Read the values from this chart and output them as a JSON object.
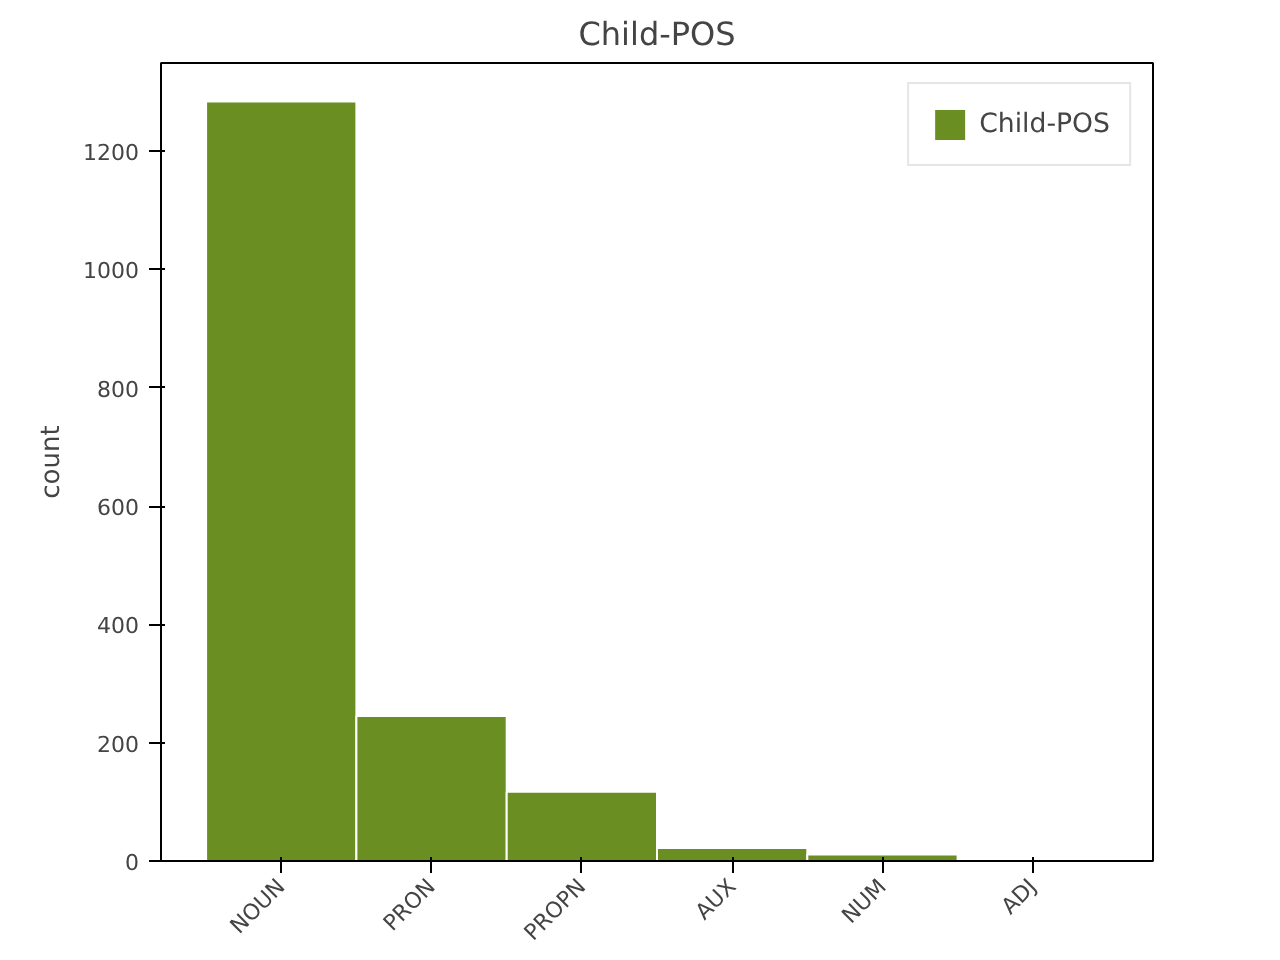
{
  "chart_data": {
    "type": "bar",
    "title": "Child-POS",
    "ylabel": "count",
    "categories": [
      "NOUN",
      "PRON",
      "PROPN",
      "AUX",
      "NUM",
      "ADJ"
    ],
    "series": [
      {
        "name": "Child-POS",
        "color": "#6b8e23",
        "values": [
          1284,
          245,
          117,
          22,
          11,
          null
        ]
      }
    ],
    "ylim": [
      0,
      1349
    ],
    "yticks": [
      0,
      200,
      400,
      600,
      800,
      1000,
      1200
    ],
    "grid": false,
    "legend": "top right"
  }
}
